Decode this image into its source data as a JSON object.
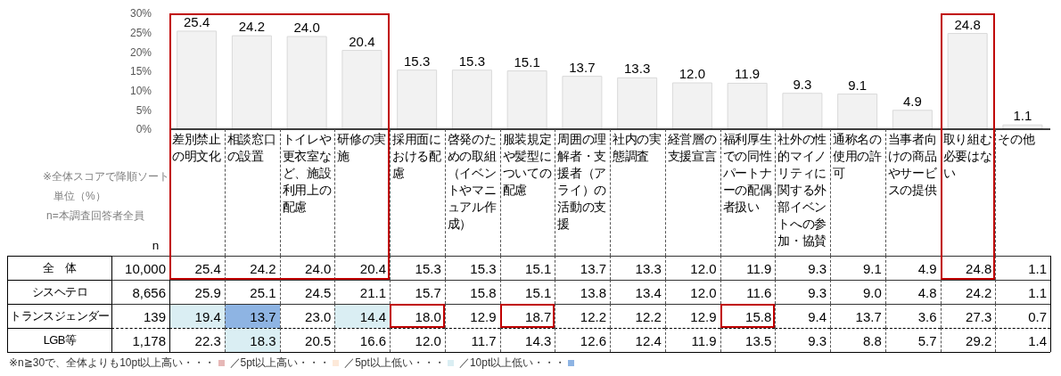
{
  "chart_data": [
    {
      "type": "bar",
      "categories": [
        null,
        null,
        null,
        null,
        null,
        null,
        null,
        null,
        null,
        null,
        null,
        null,
        null,
        null,
        null,
        null
      ],
      "values": [
        25.4,
        24.2,
        24.0,
        20.4,
        15.3,
        15.3,
        15.1,
        13.7,
        13.3,
        12.0,
        11.9,
        9.3,
        9.1,
        4.9,
        24.8,
        1.1
      ],
      "color": "#f2f2f2",
      "ylim": [
        0,
        30
      ],
      "yticks": [
        {
          "value": 0,
          "label": "0%"
        },
        {
          "value": 5,
          "label": "5%"
        },
        {
          "value": 10,
          "label": "10%"
        },
        {
          "value": 15,
          "label": "15%"
        },
        {
          "value": 20,
          "label": "20%"
        },
        {
          "value": 25,
          "label": "25%"
        },
        {
          "value": 30,
          "label": "30%"
        }
      ],
      "value_labels": [
        "25.4",
        "24.2",
        "24.0",
        "20.4",
        "15.3",
        "15.3",
        "15.1",
        "13.7",
        "13.3",
        "12.0",
        "11.9",
        "9.3",
        "9.1",
        "4.9",
        "24.8",
        "1.1"
      ],
      "annotations": [
        "※全体スコアで降順ソート",
        "単位（%）",
        "n=本調査回答者全員"
      ]
    },
    {
      "type": "heatmap",
      "categories": [
        "n",
        "差別禁止の明文化",
        "相談窓口の設置",
        "トイレや更衣室など、施設利用上の配慮",
        "研修の実施",
        "採用面における配慮",
        "啓発のための取組（イベントやマニュアル作成）",
        "服装規定や髪型についての配慮",
        "周囲の理解者・支援者（アライ）の活動の支援",
        "社内の実態調査",
        "経営層の支援宣言",
        "福利厚生での同性パートナーの配偶者扱い",
        "社外の性的マイノリティに関する外部イベントへの参加・協賛",
        "通称名の使用の許可",
        "当事者向けの商品やサービスの提供",
        "取り組む必要はない",
        "その他"
      ],
      "y_categories": [
        "全　体",
        "シスヘテロ",
        "トランスジェンダー",
        "LGB等"
      ],
      "cells": [
        [
          10000,
          25.4,
          24.2,
          24.0,
          20.4,
          15.3,
          15.3,
          15.1,
          13.7,
          13.3,
          12.0,
          11.9,
          9.3,
          9.1,
          4.9,
          24.8,
          1.1
        ],
        [
          8656,
          25.9,
          25.1,
          24.5,
          21.1,
          15.7,
          15.8,
          15.1,
          13.8,
          13.4,
          12.0,
          11.6,
          9.3,
          9.0,
          4.8,
          24.2,
          1.1
        ],
        [
          139,
          19.4,
          13.7,
          23.0,
          14.4,
          18.0,
          12.9,
          18.7,
          12.2,
          12.2,
          12.9,
          15.8,
          9.4,
          13.7,
          3.6,
          27.3,
          0.7
        ],
        [
          1178,
          22.3,
          18.3,
          20.5,
          16.6,
          12.0,
          11.7,
          14.3,
          12.6,
          12.4,
          11.9,
          13.5,
          9.3,
          8.8,
          5.7,
          29.2,
          1.4
        ]
      ],
      "cell_labels": [
        [
          "10,000",
          "25.4",
          "24.2",
          "24.0",
          "20.4",
          "15.3",
          "15.3",
          "15.1",
          "13.7",
          "13.3",
          "12.0",
          "11.9",
          "9.3",
          "9.1",
          "4.9",
          "24.8",
          "1.1"
        ],
        [
          "8,656",
          "25.9",
          "25.1",
          "24.5",
          "21.1",
          "15.7",
          "15.8",
          "15.1",
          "13.8",
          "13.4",
          "12.0",
          "11.6",
          "9.3",
          "9.0",
          "4.8",
          "24.2",
          "1.1"
        ],
        [
          "139",
          "19.4",
          "13.7",
          "23.0",
          "14.4",
          "18.0",
          "12.9",
          "18.7",
          "12.2",
          "12.2",
          "12.9",
          "15.8",
          "9.4",
          "13.7",
          "3.6",
          "27.3",
          "0.7"
        ],
        [
          "1,178",
          "22.3",
          "18.3",
          "20.5",
          "16.6",
          "12.0",
          "11.7",
          "14.3",
          "12.6",
          "12.4",
          "11.9",
          "13.5",
          "9.3",
          "8.8",
          "5.7",
          "29.2",
          "1.4"
        ]
      ],
      "annotations": [
        "※n≧30で、全体よりも10pt以上高い・・・",
        "／5pt以上高い・・・",
        "／5pt以上低い・・・",
        "／10pt以上低い・・・"
      ]
    }
  ]
}
